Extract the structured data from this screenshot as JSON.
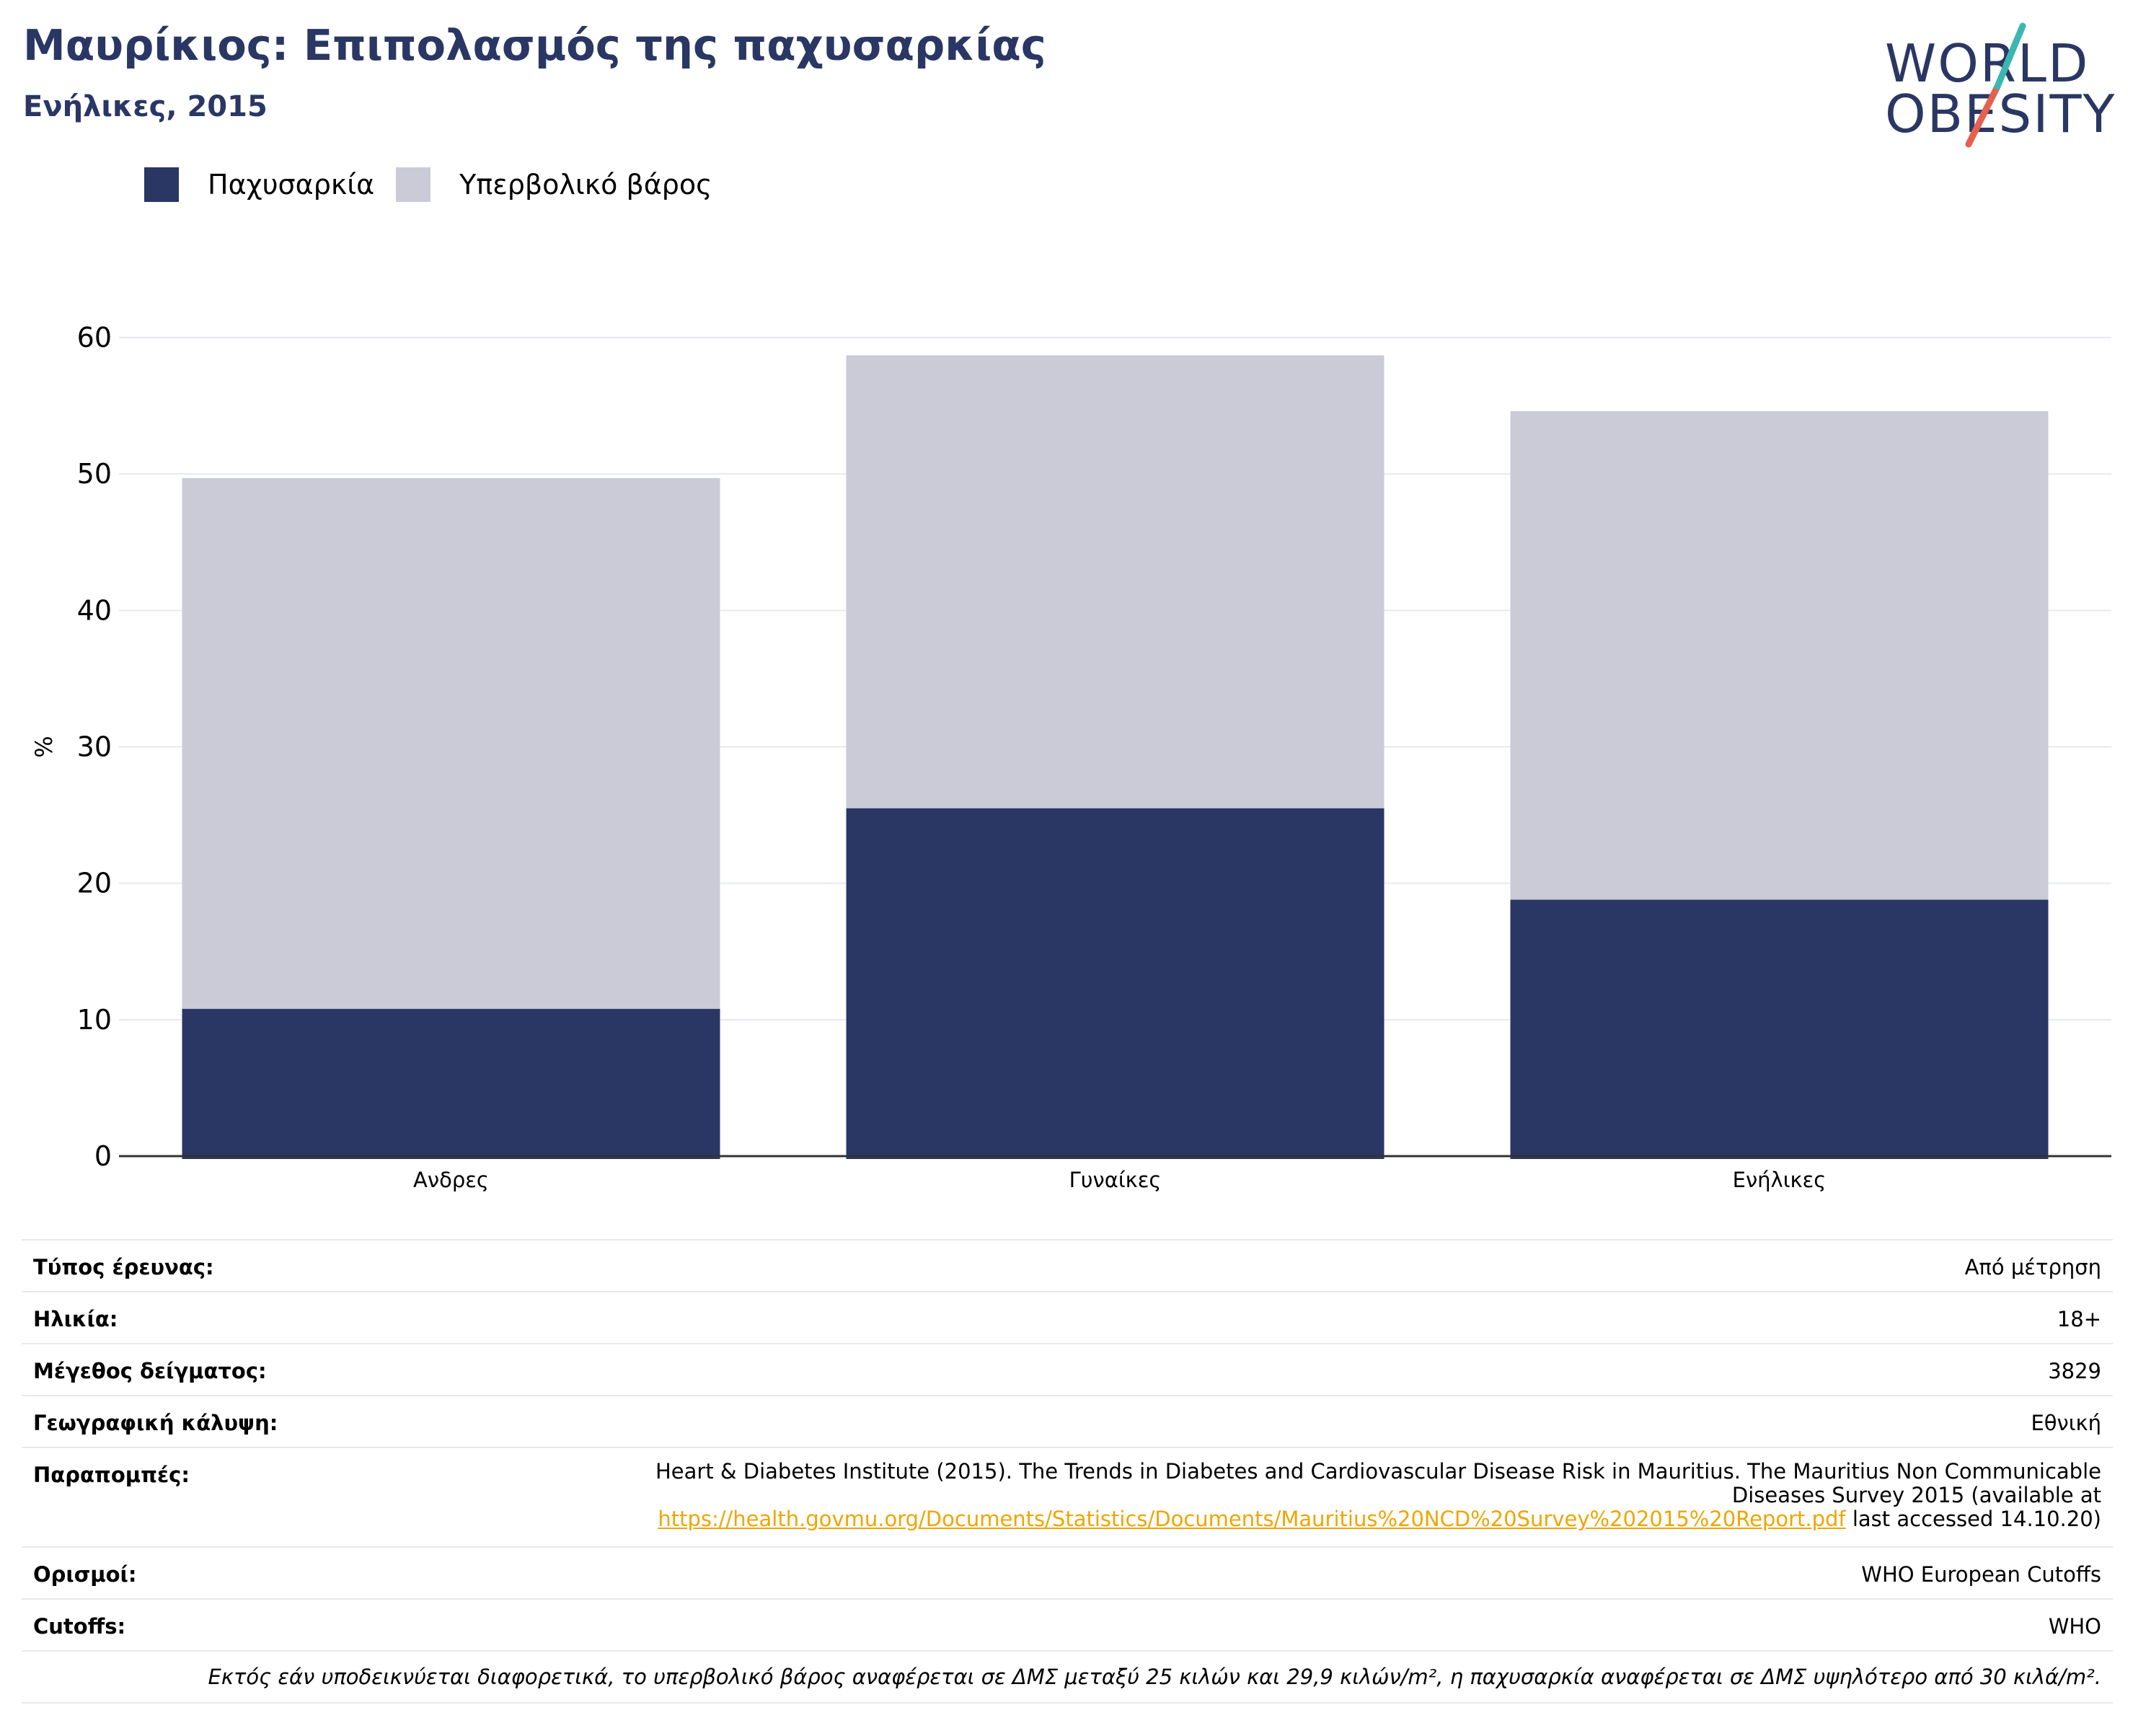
{
  "title": "Μαυρίκιος: Επιπολασμός της παχυσαρκίας",
  "subtitle": "Ενήλικες, 2015",
  "logo": {
    "line1": "WORLD",
    "line2": "OBESITY"
  },
  "colors": {
    "obesity": "#2a3764",
    "overweight": "#cacbd7",
    "accent_teal": "#3bb7b0",
    "accent_red": "#e5604f",
    "link": "#f0a500"
  },
  "chart_data": {
    "type": "bar",
    "stacked": true,
    "categories": [
      "Ανδρες",
      "Γυναίκες",
      "Ενήλικες"
    ],
    "series": [
      {
        "name": "Παχυσαρκία",
        "color": "#2a3764",
        "values": [
          10.8,
          25.5,
          18.8
        ]
      },
      {
        "name": "Υπερβολικό βάρος",
        "color": "#cacbd7",
        "values": [
          38.9,
          33.2,
          35.8
        ]
      }
    ],
    "ylabel": "%",
    "ylim": [
      0,
      60
    ],
    "yticks": [
      0,
      10,
      20,
      30,
      40,
      50,
      60
    ],
    "grid": true,
    "legend_position": "top-left"
  },
  "meta": {
    "survey_type": {
      "label": "Τύπος έρευνας:",
      "value": "Από μέτρηση"
    },
    "age": {
      "label": "Ηλικία:",
      "value": "18+"
    },
    "sample_size": {
      "label": "Μέγεθος δείγματος:",
      "value": "3829"
    },
    "coverage": {
      "label": "Γεωγραφική κάλυψη:",
      "value": "Εθνική"
    },
    "references": {
      "label": "Παραπομπές:",
      "line1": "Heart & Diabetes Institute (2015). The Trends in Diabetes and Cardiovascular Disease Risk in Mauritius. The Mauritius Non Communicable",
      "line2": "Diseases Survey 2015 (available at",
      "link": "https://health.govmu.org/Documents/Statistics/Documents/Mauritius%20NCD%20Survey%202015%20Report.pdf",
      "suffix": " last accessed 14.10.20)"
    },
    "definitions": {
      "label": "Ορισμοί:",
      "value": "WHO European Cutoffs"
    },
    "cutoffs": {
      "label": "Cutoffs:",
      "value": "WHO"
    },
    "footnote": "Εκτός εάν υποδεικνύεται διαφορετικά, το υπερβολικό βάρος αναφέρεται σε ΔΜΣ μεταξύ 25 κιλών και 29,9 κιλών/m², η παχυσαρκία αναφέρεται σε ΔΜΣ υψηλότερο από 30 κιλά/m²."
  }
}
